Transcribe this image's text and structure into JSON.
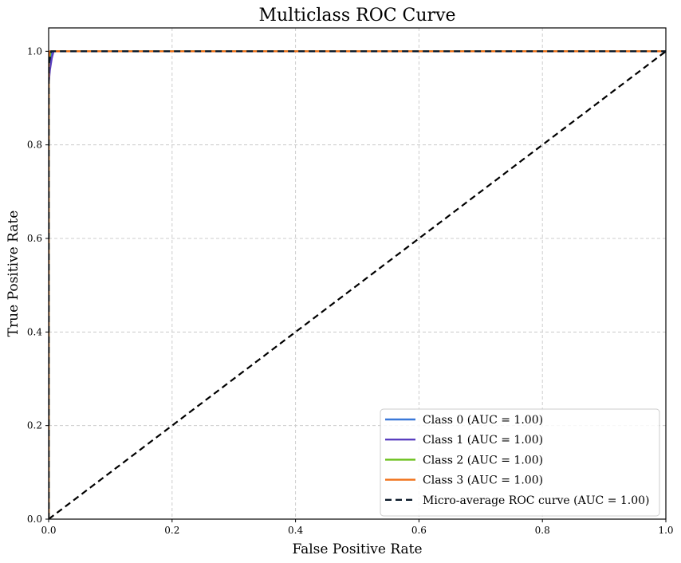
{
  "chart_data": {
    "type": "line",
    "title": "Multiclass ROC Curve",
    "xlabel": "False Positive Rate",
    "ylabel": "True Positive Rate",
    "xlim": [
      0.0,
      1.0
    ],
    "ylim": [
      0.0,
      1.05
    ],
    "xticks": [
      "0.0",
      "0.2",
      "0.4",
      "0.6",
      "0.8",
      "1.0"
    ],
    "yticks": [
      "0.0",
      "0.2",
      "0.4",
      "0.6",
      "0.8",
      "1.0"
    ],
    "grid": true,
    "legend_position": "lower-right",
    "series": [
      {
        "name": "Class 0 (AUC = 1.00)",
        "color": "#3a78d8",
        "style": "solid",
        "x": [
          0.0,
          0.0,
          0.002,
          0.004,
          0.006,
          1.0
        ],
        "y": [
          0.0,
          0.95,
          0.98,
          0.995,
          1.0,
          1.0
        ]
      },
      {
        "name": "Class 1 (AUC = 1.00)",
        "color": "#5a3fc0",
        "style": "solid",
        "x": [
          0.0,
          0.0,
          0.002,
          0.005,
          0.008,
          1.0
        ],
        "y": [
          0.0,
          0.93,
          0.96,
          0.985,
          1.0,
          1.0
        ]
      },
      {
        "name": "Class 2 (AUC = 1.00)",
        "color": "#6abf1a",
        "style": "solid",
        "x": [
          0.0,
          0.0,
          0.003,
          1.0
        ],
        "y": [
          0.0,
          0.97,
          1.0,
          1.0
        ]
      },
      {
        "name": "Class 3 (AUC = 1.00)",
        "color": "#f07018",
        "style": "solid",
        "x": [
          0.0,
          0.0,
          0.002,
          1.0
        ],
        "y": [
          0.0,
          0.985,
          1.0,
          1.0
        ]
      },
      {
        "name": "Micro-average ROC curve (AUC = 1.00)",
        "color": "#0b1a2a",
        "style": "dashed",
        "x": [
          0.0,
          0.0,
          0.004,
          1.0
        ],
        "y": [
          0.0,
          0.97,
          1.0,
          1.0
        ]
      }
    ],
    "reference_line": {
      "color": "#000000",
      "style": "dashed",
      "x": [
        0.0,
        1.0
      ],
      "y": [
        0.0,
        1.0
      ]
    }
  }
}
